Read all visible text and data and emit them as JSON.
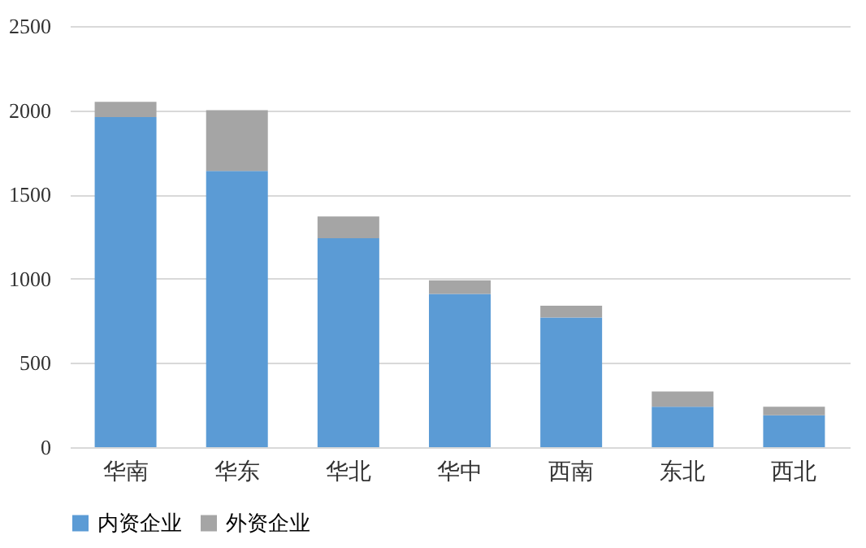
{
  "chart_data": {
    "type": "bar",
    "stacked": true,
    "categories": [
      "华南",
      "华东",
      "华北",
      "华中",
      "西南",
      "东北",
      "西北"
    ],
    "series": [
      {
        "name": "内资企业",
        "color": "#5b9bd5",
        "values": [
          1960,
          1640,
          1240,
          910,
          770,
          240,
          190
        ]
      },
      {
        "name": "外资企业",
        "color": "#a5a5a5",
        "values": [
          90,
          360,
          130,
          80,
          70,
          90,
          50
        ]
      }
    ],
    "ylim": [
      0,
      2500
    ],
    "yticks": [
      0,
      500,
      1000,
      1500,
      2000,
      2500
    ],
    "grid": "y",
    "legend": "bottom"
  }
}
